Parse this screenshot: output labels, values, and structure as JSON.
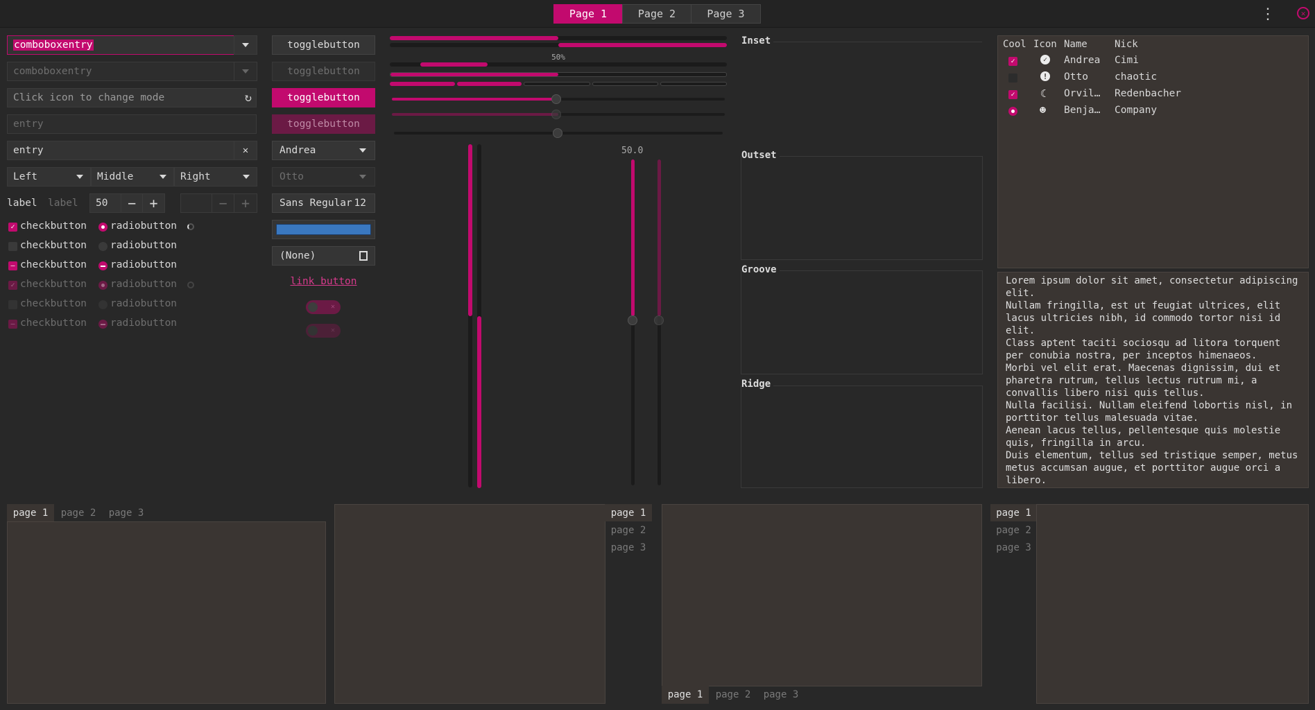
{
  "header": {
    "stack_switcher": [
      "Page 1",
      "Page 2",
      "Page 3"
    ],
    "menu_icon": "vertical-dots-icon",
    "close_icon": "close-icon"
  },
  "colors": {
    "accent": "#c20a6e",
    "background": "#282828",
    "panel": "#3a3532"
  },
  "entries": {
    "combo1_value": "comboboxentry",
    "combo2_value": "comboboxentry",
    "mode_placeholder": "Click icon to change mode",
    "entry_placeholder": "entry",
    "entry_value": "entry",
    "combos": [
      "Left",
      "Middle",
      "Right"
    ],
    "label1": "label",
    "label2": "label",
    "spin_value": "50",
    "spin_minus": "−",
    "spin_plus": "+",
    "clear_icon": "✕"
  },
  "checks": {
    "check_label": "checkbutton",
    "radio_label": "radiobutton"
  },
  "buttons": {
    "toggle": "togglebutton",
    "combo_andrea": "Andrea",
    "combo_otto": "Otto",
    "font_name": "Sans Regular",
    "font_size": "12",
    "file_none": "(None)",
    "link": "link button"
  },
  "scales": {
    "progress_label": "50%",
    "progress_value": 0.5,
    "vscale_value": "50.0"
  },
  "frames": [
    "Inset",
    "Outset",
    "Groove",
    "Ridge"
  ],
  "tree": {
    "headers": [
      "Cool",
      "Icon",
      "Name",
      "Nick"
    ],
    "rows": [
      {
        "cool": "checked",
        "icon": "check-circle-icon",
        "name": "Andrea",
        "nick": "Cimi"
      },
      {
        "cool": "unchecked",
        "icon": "warning-icon",
        "name": "Otto",
        "nick": "chaotic"
      },
      {
        "cool": "checked",
        "icon": "moon-icon",
        "name": "Orvil…",
        "nick": "Redenbacher"
      },
      {
        "cool": "radio",
        "icon": "face-icon",
        "name": "Benja…",
        "nick": "Company"
      }
    ]
  },
  "text_view": "Lorem ipsum dolor sit amet, consectetur adipiscing elit.\nNullam fringilla, est ut feugiat ultrices, elit lacus ultricies nibh, id commodo tortor nisi id elit.\nClass aptent taciti sociosqu ad litora torquent per conubia nostra, per inceptos himenaeos.\nMorbi vel elit erat. Maecenas dignissim, dui et pharetra rutrum, tellus lectus rutrum mi, a convallis libero nisi quis tellus.\nNulla facilisi. Nullam eleifend lobortis nisl, in porttitor tellus malesuada vitae.\nAenean lacus tellus, pellentesque quis molestie quis, fringilla in arcu.\nDuis elementum, tellus sed tristique semper, metus metus accumsan augue, et porttitor augue orci a libero.\nUt sed justo ac felis placerat laoreet sed id sem.",
  "notebooks": {
    "tabs": [
      "page 1",
      "page 2",
      "page 3"
    ]
  }
}
